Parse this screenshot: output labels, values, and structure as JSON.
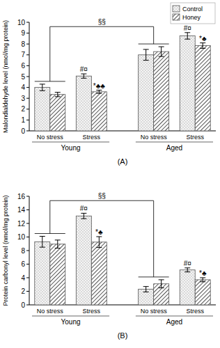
{
  "chart_data": [
    {
      "type": "bar",
      "title": "(A)",
      "y_label": "Malondialdehyde level (nmol/mg protein)",
      "categories": [
        "No stress",
        "Stress",
        "No stress",
        "Stress"
      ],
      "groups": [
        "Young",
        "Aged"
      ],
      "series": [
        {
          "name": "Control",
          "color": "#808080",
          "values": [
            4.0,
            5.05,
            7.0,
            8.75
          ],
          "errors": [
            0.3,
            0.2,
            0.5,
            0.3
          ],
          "annotations": [
            null,
            "#¤",
            null,
            "#¤"
          ]
        },
        {
          "name": "Honey",
          "color": "#404040",
          "values": [
            3.35,
            3.6,
            7.3,
            7.85
          ],
          "errors": [
            0.2,
            0.15,
            0.45,
            0.25
          ],
          "annotations": [
            null,
            "*♣♣",
            null,
            "*♣"
          ]
        }
      ],
      "bracket": {
        "label": "§§",
        "from": "Young",
        "to": "Aged"
      },
      "ylim": [
        0,
        10
      ],
      "yticks": [
        0,
        1,
        2,
        3,
        4,
        5,
        6,
        7,
        8,
        9,
        10
      ],
      "legend": "top-right"
    },
    {
      "type": "bar",
      "title": "(B)",
      "y_label": "Protein carbonyl level (nmol/mg protein)",
      "categories": [
        "No stress",
        "Stress",
        "No stress",
        "Stress"
      ],
      "groups": [
        "Young",
        "Aged"
      ],
      "series": [
        {
          "name": "Control",
          "color": "#808080",
          "values": [
            9.3,
            13.1,
            2.3,
            5.15
          ],
          "errors": [
            0.8,
            0.4,
            0.4,
            0.3
          ],
          "annotations": [
            null,
            "#¤",
            null,
            "#¤"
          ]
        },
        {
          "name": "Honey",
          "color": "#404040",
          "values": [
            8.95,
            9.25,
            3.1,
            3.7
          ],
          "errors": [
            0.6,
            0.8,
            0.6,
            0.3
          ],
          "annotations": [
            null,
            "*♣",
            null,
            "*♣"
          ]
        }
      ],
      "bracket": {
        "label": "§§",
        "from": "Young",
        "to": "Aged"
      },
      "ylim": [
        0,
        16
      ],
      "yticks": [
        0,
        2,
        4,
        6,
        8,
        10,
        12,
        14,
        16
      ]
    }
  ]
}
